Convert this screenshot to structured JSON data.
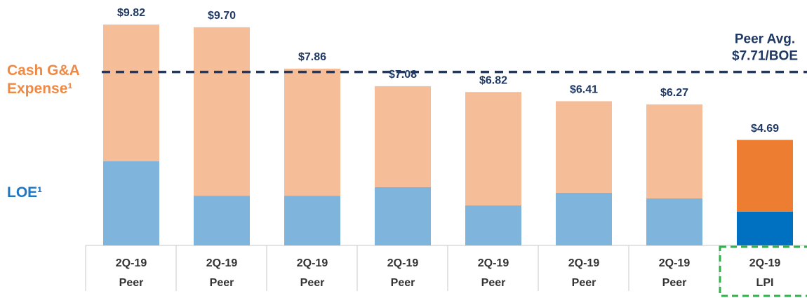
{
  "chart_data": {
    "type": "stacked_bar",
    "categories": [
      {
        "period": "2Q-19",
        "group": "Peer"
      },
      {
        "period": "2Q-19",
        "group": "Peer"
      },
      {
        "period": "2Q-19",
        "group": "Peer"
      },
      {
        "period": "2Q-19",
        "group": "Peer"
      },
      {
        "period": "2Q-19",
        "group": "Peer"
      },
      {
        "period": "2Q-19",
        "group": "Peer"
      },
      {
        "period": "2Q-19",
        "group": "Peer"
      },
      {
        "period": "2Q-19",
        "group": "LPI"
      }
    ],
    "series": [
      {
        "name": "LOE¹",
        "color": "#1f77c4",
        "colors": [
          "#7fb4dd",
          "#7fb4dd",
          "#7fb4dd",
          "#7fb4dd",
          "#7fb4dd",
          "#7fb4dd",
          "#7fb4dd",
          "#0070c0"
        ],
        "values": [
          3.74,
          2.21,
          2.21,
          2.59,
          1.78,
          2.34,
          2.09,
          1.5
        ]
      },
      {
        "name": "Cash G&A Expense¹",
        "color": "#ed8a45",
        "colors": [
          "#f5bd98",
          "#f5bd98",
          "#f5bd98",
          "#f5bd98",
          "#f5bd98",
          "#f5bd98",
          "#f5bd98",
          "#ed7d31"
        ],
        "values": [
          6.08,
          7.49,
          5.65,
          4.49,
          5.04,
          4.07,
          4.18,
          3.19
        ]
      }
    ],
    "totals": [
      9.82,
      9.7,
      7.86,
      7.08,
      6.82,
      6.41,
      6.27,
      4.69
    ],
    "total_labels": [
      "$9.82",
      "$9.70",
      "$7.86",
      "$7.08",
      "$6.82",
      "$6.41",
      "$6.27",
      "$4.69"
    ],
    "reference_line": {
      "value": 7.71,
      "color": "#1f3864",
      "label": [
        "Peer Avg.",
        "$7.71/BOE"
      ]
    },
    "highlight_color": "#2db34a"
  }
}
